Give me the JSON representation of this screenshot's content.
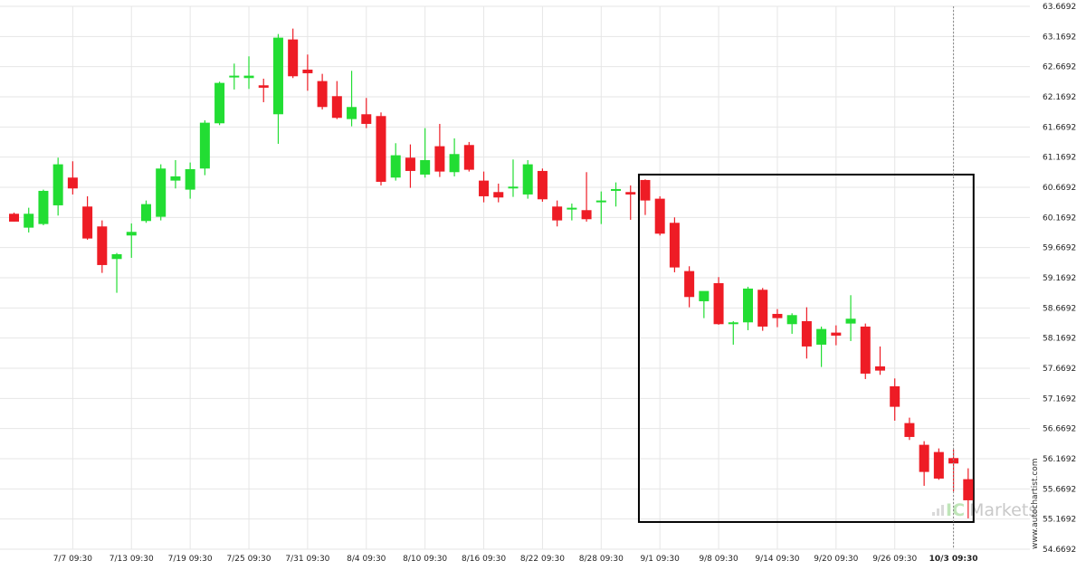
{
  "watermark": {
    "prefix": "IC",
    "suffix": "Markets"
  },
  "site_label": "www.autochartist.com",
  "colors": {
    "up": "#22dd33",
    "down": "#ee1c25",
    "grid": "#e6e6e6",
    "box": "#000000"
  },
  "chart_data": {
    "type": "candlestick",
    "ylim": [
      54.6692,
      63.6692
    ],
    "y_ticks": [
      "63.6692",
      "63.1692",
      "62.6692",
      "62.1692",
      "61.6692",
      "61.1692",
      "60.6692",
      "60.1692",
      "59.6692",
      "59.1692",
      "58.6692",
      "58.1692",
      "57.6692",
      "57.1692",
      "56.6692",
      "56.1692",
      "55.6692",
      "55.1692",
      "54.6692"
    ],
    "x_ticks": [
      {
        "label": "7/7 09:30",
        "index": 4
      },
      {
        "label": "7/13 09:30",
        "index": 8
      },
      {
        "label": "7/19 09:30",
        "index": 12
      },
      {
        "label": "7/25 09:30",
        "index": 16
      },
      {
        "label": "7/31 09:30",
        "index": 20
      },
      {
        "label": "8/4 09:30",
        "index": 24
      },
      {
        "label": "8/10 09:30",
        "index": 28
      },
      {
        "label": "8/16 09:30",
        "index": 32
      },
      {
        "label": "8/22 09:30",
        "index": 36
      },
      {
        "label": "8/28 09:30",
        "index": 40
      },
      {
        "label": "9/1 09:30",
        "index": 44
      },
      {
        "label": "9/8 09:30",
        "index": 48
      },
      {
        "label": "9/14 09:30",
        "index": 52
      },
      {
        "label": "9/20 09:30",
        "index": 56
      },
      {
        "label": "9/26 09:30",
        "index": 60
      },
      {
        "label": "10/3 09:30",
        "index": 64
      }
    ],
    "candles": [
      {
        "o": 60.23,
        "h": 60.25,
        "l": 60.1,
        "c": 60.1
      },
      {
        "o": 60.0,
        "h": 60.33,
        "l": 59.92,
        "c": 60.23
      },
      {
        "o": 60.06,
        "h": 60.63,
        "l": 60.04,
        "c": 60.61
      },
      {
        "o": 60.37,
        "h": 61.16,
        "l": 60.2,
        "c": 61.05
      },
      {
        "o": 60.83,
        "h": 61.1,
        "l": 60.55,
        "c": 60.65
      },
      {
        "o": 60.35,
        "h": 60.52,
        "l": 59.8,
        "c": 59.82
      },
      {
        "o": 60.02,
        "h": 60.12,
        "l": 59.25,
        "c": 59.38
      },
      {
        "o": 59.48,
        "h": 59.58,
        "l": 58.92,
        "c": 59.56
      },
      {
        "o": 59.87,
        "h": 60.07,
        "l": 59.5,
        "c": 59.93
      },
      {
        "o": 60.11,
        "h": 60.45,
        "l": 60.08,
        "c": 60.39
      },
      {
        "o": 60.18,
        "h": 61.05,
        "l": 60.12,
        "c": 60.98
      },
      {
        "o": 60.78,
        "h": 61.12,
        "l": 60.65,
        "c": 60.85
      },
      {
        "o": 60.63,
        "h": 61.08,
        "l": 60.48,
        "c": 60.97
      },
      {
        "o": 60.98,
        "h": 61.78,
        "l": 60.87,
        "c": 61.74
      },
      {
        "o": 61.73,
        "h": 62.42,
        "l": 61.7,
        "c": 62.4
      },
      {
        "o": 62.52,
        "h": 62.72,
        "l": 62.29,
        "c": 62.52
      },
      {
        "o": 62.48,
        "h": 62.84,
        "l": 62.3,
        "c": 62.52
      },
      {
        "o": 62.36,
        "h": 62.47,
        "l": 62.08,
        "c": 62.32
      },
      {
        "o": 61.88,
        "h": 63.21,
        "l": 61.39,
        "c": 63.15
      },
      {
        "o": 63.12,
        "h": 63.3,
        "l": 62.48,
        "c": 62.51
      },
      {
        "o": 62.62,
        "h": 62.87,
        "l": 62.27,
        "c": 62.56
      },
      {
        "o": 62.43,
        "h": 62.55,
        "l": 61.96,
        "c": 62.0
      },
      {
        "o": 62.18,
        "h": 62.43,
        "l": 61.8,
        "c": 61.82
      },
      {
        "o": 61.8,
        "h": 62.6,
        "l": 61.68,
        "c": 62.0
      },
      {
        "o": 61.88,
        "h": 62.15,
        "l": 61.65,
        "c": 61.72
      },
      {
        "o": 61.85,
        "h": 61.91,
        "l": 60.7,
        "c": 60.76
      },
      {
        "o": 60.83,
        "h": 61.4,
        "l": 60.78,
        "c": 61.2
      },
      {
        "o": 61.16,
        "h": 61.38,
        "l": 60.66,
        "c": 60.94
      },
      {
        "o": 60.88,
        "h": 61.65,
        "l": 60.83,
        "c": 61.12
      },
      {
        "o": 61.35,
        "h": 61.72,
        "l": 60.84,
        "c": 60.93
      },
      {
        "o": 60.92,
        "h": 61.48,
        "l": 60.85,
        "c": 61.22
      },
      {
        "o": 61.37,
        "h": 61.42,
        "l": 60.93,
        "c": 60.96
      },
      {
        "o": 60.78,
        "h": 60.93,
        "l": 60.42,
        "c": 60.52
      },
      {
        "o": 60.59,
        "h": 60.73,
        "l": 60.42,
        "c": 60.5
      },
      {
        "o": 60.65,
        "h": 61.13,
        "l": 60.51,
        "c": 60.68
      },
      {
        "o": 60.55,
        "h": 61.12,
        "l": 60.48,
        "c": 61.05
      },
      {
        "o": 60.94,
        "h": 60.98,
        "l": 60.43,
        "c": 60.47
      },
      {
        "o": 60.35,
        "h": 60.45,
        "l": 60.02,
        "c": 60.12
      },
      {
        "o": 60.33,
        "h": 60.4,
        "l": 60.12,
        "c": 60.33
      },
      {
        "o": 60.29,
        "h": 60.92,
        "l": 60.1,
        "c": 60.14
      },
      {
        "o": 60.44,
        "h": 60.6,
        "l": 60.06,
        "c": 60.45
      },
      {
        "o": 60.64,
        "h": 60.75,
        "l": 60.35,
        "c": 60.64
      },
      {
        "o": 60.59,
        "h": 60.7,
        "l": 60.13,
        "c": 60.55
      },
      {
        "o": 60.79,
        "h": 60.8,
        "l": 60.21,
        "c": 60.45
      },
      {
        "o": 60.48,
        "h": 60.52,
        "l": 59.87,
        "c": 59.9
      },
      {
        "o": 60.08,
        "h": 60.17,
        "l": 59.26,
        "c": 59.34
      },
      {
        "o": 59.28,
        "h": 59.36,
        "l": 58.68,
        "c": 58.85
      },
      {
        "o": 58.78,
        "h": 58.92,
        "l": 58.5,
        "c": 58.95
      },
      {
        "o": 59.08,
        "h": 59.18,
        "l": 58.39,
        "c": 58.4
      },
      {
        "o": 58.43,
        "h": 58.45,
        "l": 58.06,
        "c": 58.43
      },
      {
        "o": 58.43,
        "h": 59.02,
        "l": 58.3,
        "c": 58.99
      },
      {
        "o": 58.97,
        "h": 59.0,
        "l": 58.29,
        "c": 58.36
      },
      {
        "o": 58.57,
        "h": 58.65,
        "l": 58.35,
        "c": 58.5
      },
      {
        "o": 58.4,
        "h": 58.58,
        "l": 58.24,
        "c": 58.55
      },
      {
        "o": 58.45,
        "h": 58.68,
        "l": 57.83,
        "c": 58.03
      },
      {
        "o": 58.06,
        "h": 58.36,
        "l": 57.69,
        "c": 58.32
      },
      {
        "o": 58.26,
        "h": 58.38,
        "l": 58.05,
        "c": 58.21
      },
      {
        "o": 58.41,
        "h": 58.88,
        "l": 58.12,
        "c": 58.49
      },
      {
        "o": 58.36,
        "h": 58.41,
        "l": 57.49,
        "c": 57.58
      },
      {
        "o": 57.7,
        "h": 58.03,
        "l": 57.56,
        "c": 57.63
      },
      {
        "o": 57.37,
        "h": 57.5,
        "l": 56.8,
        "c": 57.03
      },
      {
        "o": 56.76,
        "h": 56.85,
        "l": 56.48,
        "c": 56.53
      },
      {
        "o": 56.4,
        "h": 56.46,
        "l": 55.72,
        "c": 55.95
      },
      {
        "o": 56.28,
        "h": 56.34,
        "l": 55.82,
        "c": 55.84
      },
      {
        "o": 56.18,
        "h": 56.32,
        "l": 55.63,
        "c": 56.09
      },
      {
        "o": 55.83,
        "h": 56.01,
        "l": 55.18,
        "c": 55.48
      }
    ],
    "pattern_box": {
      "start_index": 43,
      "end_index": 65,
      "high": 60.88,
      "low": 55.12
    },
    "grid": true
  }
}
